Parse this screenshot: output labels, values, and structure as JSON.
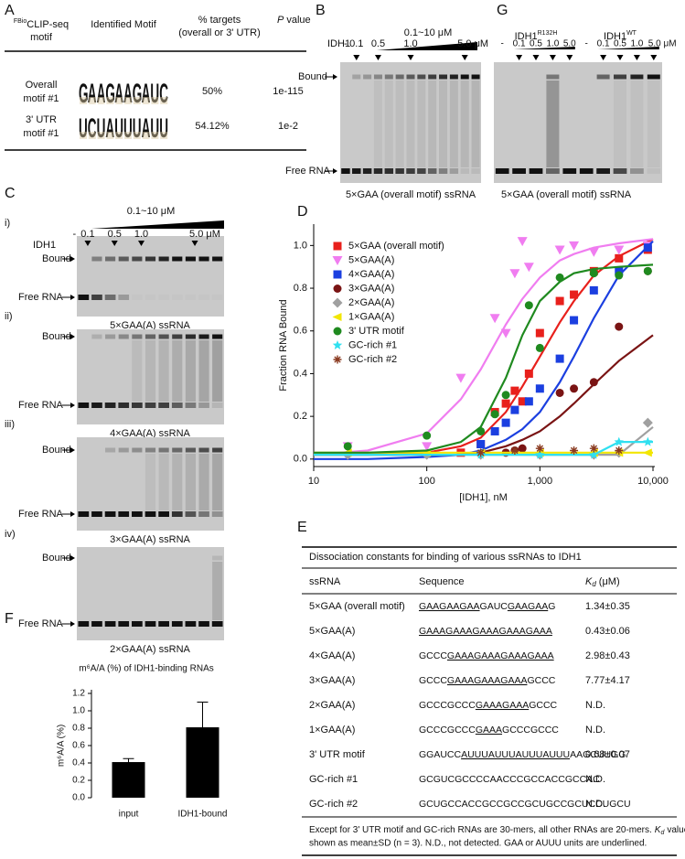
{
  "panels": {
    "A": {
      "label": "A",
      "header": {
        "col1_sup": "FBio",
        "col1": "CLIP-seq",
        "col1b": "motif",
        "col2": "Identified Motif",
        "col3": "% targets",
        "col3b": "(overall or 3' UTR)",
        "col4_italic": "P",
        "col4": "value"
      },
      "rows": [
        {
          "name": "Overall",
          "name2": "motif #1",
          "motif": [
            "G",
            "A",
            "A",
            "G",
            "A",
            "A",
            "G",
            "A",
            "U",
            "C"
          ],
          "targets": "50%",
          "p": "1e-115"
        },
        {
          "name": "3' UTR",
          "name2": "motif #1",
          "motif": [
            "U",
            "C",
            "U",
            "A",
            "U",
            "U",
            "U",
            "A",
            "U",
            "U"
          ],
          "targets": "54.12%",
          "p": "1e-2"
        }
      ]
    },
    "B": {
      "label": "B",
      "conc_range": "0.1~10 μM",
      "protein": "IDH1",
      "lanes": [
        "-",
        "0.1",
        "0.5",
        "1.0",
        "5.0 μM"
      ],
      "bound": "Bound",
      "free": "Free RNA",
      "caption": "5×GAA (overall motif) ssRNA"
    },
    "G": {
      "label": "G",
      "groups": [
        {
          "name": "IDH1",
          "sup": "R132H",
          "lanes": [
            "-",
            "0.1",
            "0.5",
            "1.0",
            "5.0"
          ]
        },
        {
          "name": "IDH1",
          "sup": "WT",
          "lanes": [
            "-",
            "0.1",
            "0.5",
            "1.0",
            "5.0 μM"
          ]
        }
      ],
      "caption": "5×GAA (overall motif) ssRNA"
    },
    "C": {
      "label": "C",
      "conc_range": "0.1~10 μM",
      "protein": "IDH1",
      "lanes": [
        "-",
        "0.1",
        "0.5",
        "1.0",
        "5.0 μM"
      ],
      "gels": [
        {
          "index": "i)",
          "bound": "Bound",
          "free": "Free RNA",
          "caption": "5×GAA(A) ssRNA"
        },
        {
          "index": "ii)",
          "bound": "Bound",
          "free": "Free RNA",
          "caption": "4×GAA(A) ssRNA"
        },
        {
          "index": "iii)",
          "bound": "Bound",
          "free": "Free RNA",
          "caption": "3×GAA(A) ssRNA"
        },
        {
          "index": "iv)",
          "bound": "Bound",
          "free": "Free RNA",
          "caption": "2×GAA(A) ssRNA"
        }
      ]
    },
    "E": {
      "label": "E",
      "title": "Dissociation constants for binding of various ssRNAs to IDH1",
      "columns": {
        "ssrna": "ssRNA",
        "sequence": "Sequence",
        "kd": "K",
        "kd_sub": "d",
        "kd_unit": "(μM)"
      },
      "rows": [
        {
          "name": "5×GAA (overall motif)",
          "sequence": [
            {
              "text": "GAAGAAGAA",
              "underline": true
            },
            {
              "text": "GAUC",
              "underline": false
            },
            {
              "text": "GAAGAA",
              "underline": true
            },
            {
              "text": "G",
              "underline": false
            }
          ],
          "kd": "1.34±0.35"
        },
        {
          "name": "5×GAA(A)",
          "sequence": [
            {
              "text": "GAAAGAAAGAAAGAAAGAAA",
              "underline": true
            }
          ],
          "kd": "0.43±0.06"
        },
        {
          "name": "4×GAA(A)",
          "sequence": [
            {
              "text": "GCCC",
              "underline": false
            },
            {
              "text": "GAAAGAAAGAAAGAAA",
              "underline": true
            }
          ],
          "kd": "2.98±0.43"
        },
        {
          "name": "3×GAA(A)",
          "sequence": [
            {
              "text": "GCCC",
              "underline": false
            },
            {
              "text": "GAAAGAAAGAAA",
              "underline": true
            },
            {
              "text": "GCCC",
              "underline": false
            }
          ],
          "kd": "7.77±4.17"
        },
        {
          "name": "2×GAA(A)",
          "sequence": [
            {
              "text": "GCCCGCCC",
              "underline": false
            },
            {
              "text": "GAAAGAAA",
              "underline": true
            },
            {
              "text": "GCCC",
              "underline": false
            }
          ],
          "kd": "N.D."
        },
        {
          "name": "1×GAA(A)",
          "sequence": [
            {
              "text": "GCCCGCCC",
              "underline": false
            },
            {
              "text": "GAAA",
              "underline": true
            },
            {
              "text": "GCCCGCCC",
              "underline": false
            }
          ],
          "kd": "N.D."
        },
        {
          "name": "3' UTR motif",
          "sequence": [
            {
              "text": "GGAUCC",
              "underline": false
            },
            {
              "text": "AUUUAUUUAUUUAUUU",
              "underline": true
            },
            {
              "text": "AAGCUUGG",
              "underline": false
            }
          ],
          "kd": "0.68±0.07"
        },
        {
          "name": "GC-rich #1",
          "sequence": [
            {
              "text": "GCGUCGCCCCAACCCGCCACCGCCAC",
              "underline": false
            }
          ],
          "kd": "N.D."
        },
        {
          "name": "GC-rich #2",
          "sequence": [
            {
              "text": "GCUGCCACCGCCGCCGCUGCCGCUCCUGCU",
              "underline": false
            }
          ],
          "kd": "N.D."
        }
      ],
      "footnote": {
        "line1": "Except for 3' UTR motif and GC-rich RNAs are 30-mers, all other RNAs are 20-mers.",
        "k": "K",
        "k_sub": "d",
        "line1_end": "values",
        "line2": "shown as mean±SD (n = 3). N.D., not detected. GAA or AUUU units are underlined."
      }
    }
  },
  "chart_data": [
    {
      "type": "scatter",
      "panel_label": "D",
      "xlabel": "[IDH1], nM",
      "ylabel": "Fraction RNA Bound",
      "xscale": "log",
      "xlim": [
        10,
        10000
      ],
      "xticks": [
        10,
        100,
        {
          "value": 1000,
          "label": "1,000"
        },
        {
          "value": 10000,
          "label": "10,000"
        }
      ],
      "ylim": [
        -0.035,
        1.1
      ],
      "yticks": [
        {
          "value": 0,
          "label": "0.0"
        },
        0.2,
        0.4,
        0.6,
        0.8,
        {
          "value": 1,
          "label": "1.0"
        }
      ],
      "legend": "upper left",
      "fit_x": [
        10,
        30,
        100,
        200,
        300,
        500,
        700,
        1000,
        1500,
        2000,
        3000,
        5000,
        10000
      ],
      "series": [
        {
          "name": "5×GAA (overall motif)",
          "color": "#e8201c",
          "marker": "square",
          "x": [
            200,
            300,
            400,
            500,
            600,
            700,
            800,
            1000,
            1500,
            2000,
            3000,
            5000,
            9000
          ],
          "values": [
            0.03,
            0.07,
            0.22,
            0.26,
            0.32,
            0.27,
            0.4,
            0.59,
            0.74,
            0.77,
            0.88,
            0.94,
            0.98
          ],
          "fit": [
            0.02,
            0.02,
            0.03,
            0.06,
            0.1,
            0.22,
            0.34,
            0.48,
            0.64,
            0.74,
            0.86,
            0.95,
            1.03
          ]
        },
        {
          "name": "5×GAA(A)",
          "color": "#f07df0",
          "marker": "triangle-down",
          "x": [
            20,
            100,
            200,
            400,
            500,
            600,
            700,
            800,
            1500,
            2000,
            3000,
            5000,
            9000
          ],
          "values": [
            0.06,
            0.06,
            0.38,
            0.66,
            0.59,
            0.87,
            1.02,
            0.9,
            0.98,
            1.0,
            0.97,
            0.98,
            1.0
          ],
          "fit": [
            0.02,
            0.04,
            0.12,
            0.28,
            0.42,
            0.63,
            0.75,
            0.85,
            0.93,
            0.96,
            0.99,
            1.01,
            1.03
          ]
        },
        {
          "name": "4×GAA(A)",
          "color": "#1b3fe0",
          "marker": "square",
          "x": [
            300,
            400,
            500,
            600,
            800,
            1000,
            1500,
            2000,
            3000,
            5000,
            9000
          ],
          "values": [
            0.07,
            0.13,
            0.17,
            0.23,
            0.27,
            0.33,
            0.47,
            0.65,
            0.79,
            0.88,
            0.99
          ],
          "fit": [
            0.0,
            0.0,
            0.01,
            0.02,
            0.04,
            0.09,
            0.14,
            0.22,
            0.36,
            0.48,
            0.66,
            0.86,
            1.02
          ]
        },
        {
          "name": "3×GAA(A)",
          "color": "#7a1414",
          "marker": "circle",
          "x": [
            500,
            600,
            700,
            1500,
            2000,
            3000,
            5000,
            9000
          ],
          "values": [
            0.03,
            0.04,
            0.05,
            0.31,
            0.33,
            0.36,
            0.62,
            0.88
          ],
          "fit": [
            0.02,
            0.02,
            0.02,
            0.02,
            0.03,
            0.06,
            0.09,
            0.13,
            0.2,
            0.26,
            0.35,
            0.46,
            0.58
          ]
        },
        {
          "name": "2×GAA(A)",
          "color": "#a0a0a0",
          "marker": "diamond",
          "x": [
            20,
            100,
            300,
            1000,
            3000,
            5000,
            9000
          ],
          "values": [
            0.02,
            0.02,
            0.02,
            0.02,
            0.02,
            0.03,
            0.17
          ],
          "fit": [
            0.02,
            0.02,
            0.02,
            0.02,
            0.02,
            0.02,
            0.02,
            0.02,
            0.02,
            0.02,
            0.02,
            0.02,
            0.15
          ]
        },
        {
          "name": "1×GAA(A)",
          "color": "#f2e600",
          "marker": "triangle-left",
          "x": [
            20,
            100,
            300,
            1000,
            3000,
            5000,
            9000
          ],
          "values": [
            0.03,
            0.03,
            0.03,
            0.03,
            0.03,
            0.03,
            0.03
          ],
          "fit": [
            0.03,
            0.03,
            0.03,
            0.03,
            0.03,
            0.03,
            0.03,
            0.03,
            0.03,
            0.03,
            0.03,
            0.03,
            0.03
          ]
        },
        {
          "name": "3' UTR motif",
          "color": "#1f8a1f",
          "marker": "circle",
          "x": [
            20,
            100,
            300,
            400,
            500,
            800,
            1000,
            1500,
            3000,
            5000,
            9000
          ],
          "values": [
            0.06,
            0.11,
            0.13,
            0.21,
            0.3,
            0.72,
            0.52,
            0.85,
            0.87,
            0.86,
            0.88
          ],
          "fit": [
            0.03,
            0.03,
            0.04,
            0.08,
            0.15,
            0.38,
            0.58,
            0.74,
            0.83,
            0.87,
            0.89,
            0.9,
            0.91
          ]
        },
        {
          "name": "GC-rich #1",
          "color": "#2fe0f0",
          "marker": "star",
          "x": [
            300,
            1000,
            3000,
            5000,
            9000
          ],
          "values": [
            0.02,
            0.02,
            0.02,
            0.08,
            0.08
          ],
          "fit": [
            0.02,
            0.02,
            0.02,
            0.02,
            0.02,
            0.02,
            0.02,
            0.02,
            0.02,
            0.02,
            0.02,
            0.08,
            0.08
          ]
        },
        {
          "name": "GC-rich #2",
          "color": "#8a3a20",
          "marker": "asterisk",
          "x": [
            300,
            600,
            1000,
            2000,
            3000,
            5000
          ],
          "values": [
            0.03,
            0.04,
            0.05,
            0.04,
            0.05,
            0.04
          ]
        }
      ]
    },
    {
      "type": "bar",
      "panel_label": "F",
      "title": "m⁶A/A (%) of IDH1-binding RNAs",
      "ylabel": "m⁶A/A (%)",
      "categories": [
        "input",
        "IDH1-bound"
      ],
      "values": [
        0.41,
        0.81
      ],
      "errors": [
        0.04,
        0.29
      ],
      "color": "#000000",
      "ylim": [
        0,
        1.2
      ],
      "yticks": [
        {
          "value": 0,
          "label": "0.0"
        },
        0.2,
        0.4,
        0.6,
        0.8,
        {
          "value": 1,
          "label": "1.0"
        },
        1.2
      ]
    }
  ]
}
